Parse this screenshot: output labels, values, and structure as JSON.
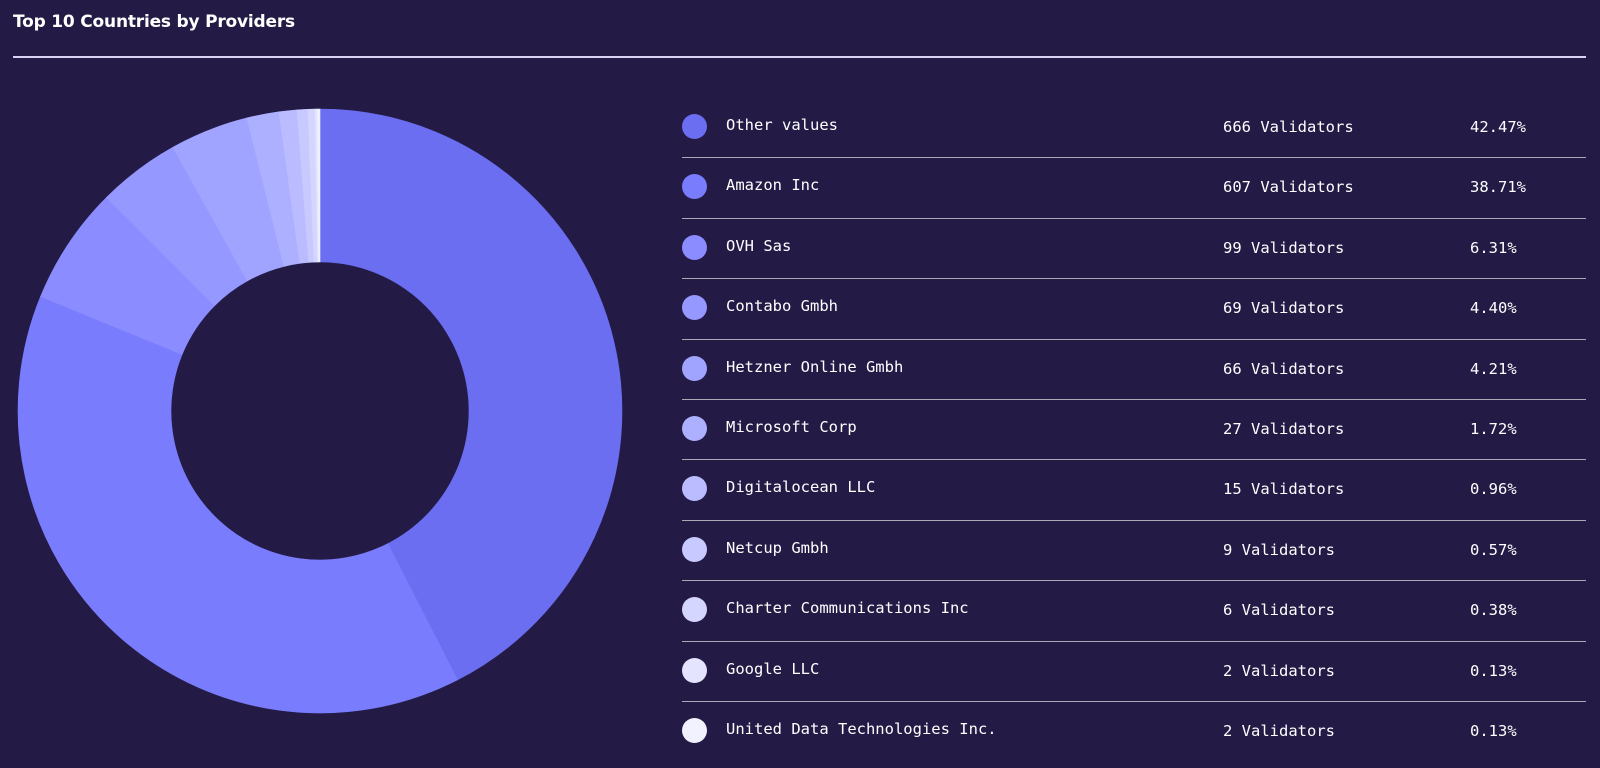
{
  "title": "Top 10 Countries by Providers",
  "chart_data": {
    "type": "pie",
    "donut": true,
    "legend_position": "right",
    "entries": [
      {
        "name": "Other values",
        "value": 666,
        "count_label": "666 Validators",
        "percent": 42.47,
        "percent_label": "42.47%",
        "color": "#6b6ef0"
      },
      {
        "name": "Amazon Inc",
        "value": 607,
        "count_label": "607 Validators",
        "percent": 38.71,
        "percent_label": "38.71%",
        "color": "#7a7cfe"
      },
      {
        "name": "OVH Sas",
        "value": 99,
        "count_label": "99 Validators",
        "percent": 6.31,
        "percent_label": "6.31%",
        "color": "#8a8cff"
      },
      {
        "name": "Contabo Gmbh",
        "value": 69,
        "count_label": "69 Validators",
        "percent": 4.4,
        "percent_label": "4.40%",
        "color": "#9598ff"
      },
      {
        "name": "Hetzner Online Gmbh",
        "value": 66,
        "count_label": "66 Validators",
        "percent": 4.21,
        "percent_label": "4.21%",
        "color": "#a1a4ff"
      },
      {
        "name": "Microsoft Corp",
        "value": 27,
        "count_label": "27 Validators",
        "percent": 1.72,
        "percent_label": "1.72%",
        "color": "#adb0ff"
      },
      {
        "name": "Digitalocean LLC",
        "value": 15,
        "count_label": "15 Validators",
        "percent": 0.96,
        "percent_label": "0.96%",
        "color": "#babcff"
      },
      {
        "name": "Netcup Gmbh",
        "value": 9,
        "count_label": "9 Validators",
        "percent": 0.57,
        "percent_label": "0.57%",
        "color": "#c7c9ff"
      },
      {
        "name": "Charter Communications Inc",
        "value": 6,
        "count_label": "6 Validators",
        "percent": 0.38,
        "percent_label": "0.38%",
        "color": "#d5d6ff"
      },
      {
        "name": "Google LLC",
        "value": 2,
        "count_label": "2 Validators",
        "percent": 0.13,
        "percent_label": "0.13%",
        "color": "#e4e4ff"
      },
      {
        "name": "United Data Technologies Inc.",
        "value": 2,
        "count_label": "2 Validators",
        "percent": 0.13,
        "percent_label": "0.13%",
        "color": "#f2f2ff"
      }
    ]
  }
}
